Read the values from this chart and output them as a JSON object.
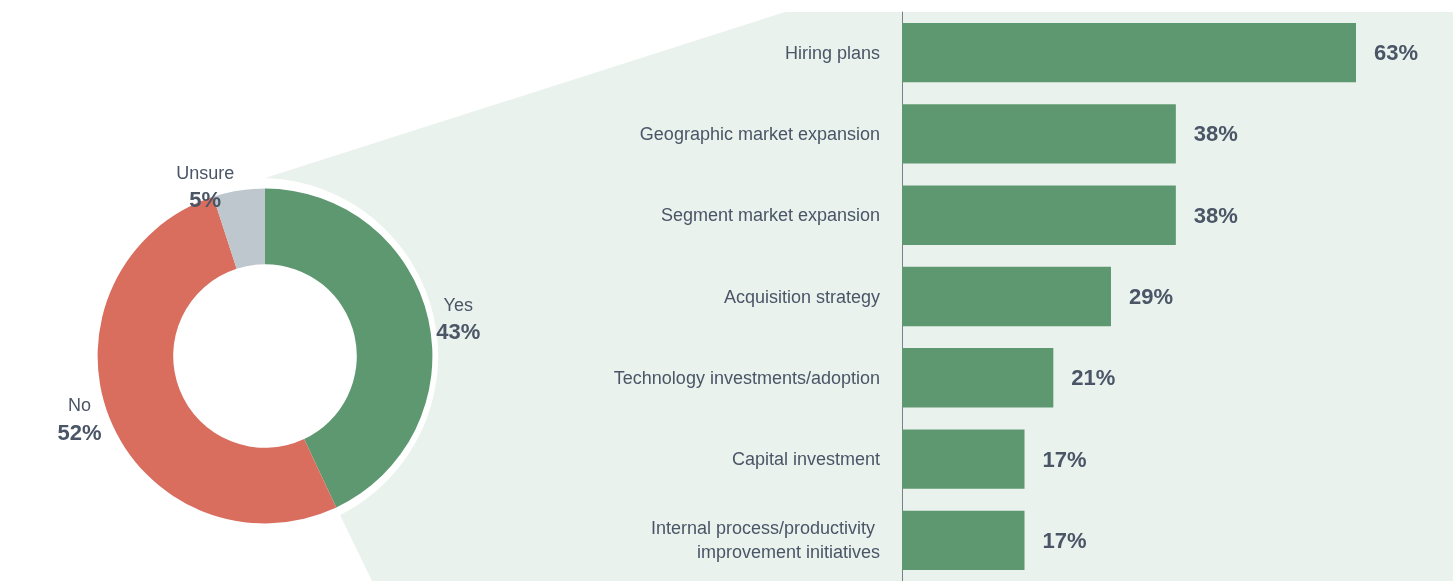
{
  "chart_data": [
    {
      "type": "donut",
      "categories": [
        "Yes",
        "No",
        "Unsure"
      ],
      "values": [
        43,
        52,
        5
      ],
      "colors": [
        "#5e9870",
        "#d96e5f",
        "#bdc7cd"
      ],
      "value_labels": [
        "43%",
        "52%",
        "5%"
      ]
    },
    {
      "type": "bar",
      "orientation": "horizontal",
      "categories": [
        "Hiring plans",
        "Geographic market expansion",
        "Segment market expansion",
        "Acquisition strategy",
        "Technology investments/adoption",
        "Capital investment",
        "Internal process/productivity improvement initiatives"
      ],
      "values": [
        63,
        38,
        38,
        29,
        21,
        17,
        17
      ],
      "color": "#5e9870",
      "value_labels": [
        "63%",
        "38%",
        "38%",
        "29%",
        "21%",
        "17%",
        "17%"
      ]
    }
  ]
}
